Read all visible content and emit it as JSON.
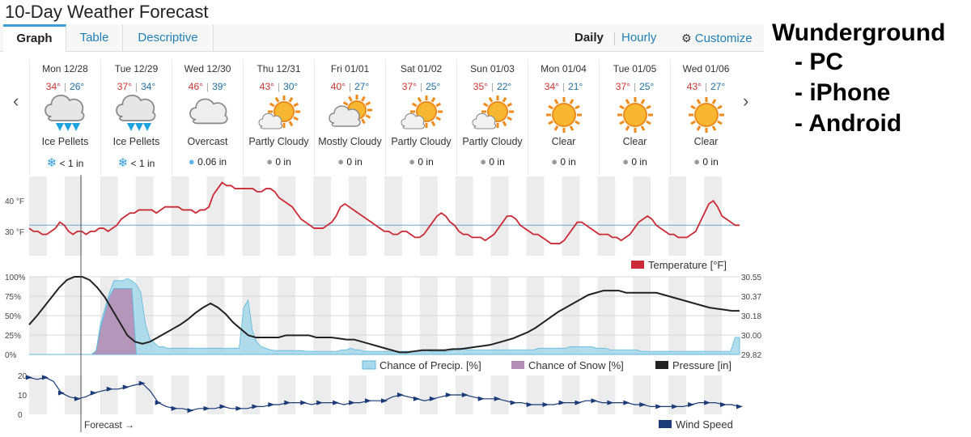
{
  "page": {
    "title": "10-Day Weather Forecast"
  },
  "tabs": [
    {
      "label": "Graph",
      "active": true
    },
    {
      "label": "Table",
      "active": false
    },
    {
      "label": "Descriptive",
      "active": false
    }
  ],
  "view": {
    "daily": "Daily",
    "hourly": "Hourly",
    "customize": "Customize"
  },
  "days": [
    {
      "date": "Mon 12/28",
      "hi": "34°",
      "lo": "26°",
      "cond": "Ice Pellets",
      "icon": "ice-pellets",
      "precip": "< 1 in",
      "precip_icon": "snowflake"
    },
    {
      "date": "Tue 12/29",
      "hi": "37°",
      "lo": "34°",
      "cond": "Ice Pellets",
      "icon": "ice-pellets",
      "precip": "< 1 in",
      "precip_icon": "snowflake"
    },
    {
      "date": "Wed 12/30",
      "hi": "46°",
      "lo": "39°",
      "cond": "Overcast",
      "icon": "overcast",
      "precip": "0.06 in",
      "precip_icon": "raindrop"
    },
    {
      "date": "Thu 12/31",
      "hi": "43°",
      "lo": "30°",
      "cond": "Partly Cloudy",
      "icon": "partly-cloudy",
      "precip": "0 in",
      "precip_icon": "raindrop"
    },
    {
      "date": "Fri 01/01",
      "hi": "40°",
      "lo": "27°",
      "cond": "Mostly Cloudy",
      "icon": "mostly-cloudy",
      "precip": "0 in",
      "precip_icon": "raindrop"
    },
    {
      "date": "Sat 01/02",
      "hi": "37°",
      "lo": "25°",
      "cond": "Partly Cloudy",
      "icon": "partly-cloudy",
      "precip": "0 in",
      "precip_icon": "raindrop"
    },
    {
      "date": "Sun 01/03",
      "hi": "35°",
      "lo": "22°",
      "cond": "Partly Cloudy",
      "icon": "partly-cloudy",
      "precip": "0 in",
      "precip_icon": "raindrop"
    },
    {
      "date": "Mon 01/04",
      "hi": "34°",
      "lo": "21°",
      "cond": "Clear",
      "icon": "clear",
      "precip": "0 in",
      "precip_icon": "raindrop"
    },
    {
      "date": "Tue 01/05",
      "hi": "37°",
      "lo": "25°",
      "cond": "Clear",
      "icon": "clear",
      "precip": "0 in",
      "precip_icon": "raindrop"
    },
    {
      "date": "Wed 01/06",
      "hi": "43°",
      "lo": "27°",
      "cond": "Clear",
      "icon": "clear",
      "precip": "0 in",
      "precip_icon": "raindrop"
    }
  ],
  "colors": {
    "temperature": "#cc2a36",
    "precip": "#a8d8ea",
    "snow": "#b48eb4",
    "pressure": "#222222",
    "wind": "#1b3a78",
    "accent": "#1f7fb6"
  },
  "temp_chart": {
    "ticks": [
      "40 °F",
      "30 °F"
    ],
    "legend": "Temperature [°F]",
    "values": [
      31,
      30,
      30,
      29,
      29,
      30,
      31,
      33,
      32,
      30,
      29,
      30,
      30,
      29,
      30,
      30,
      31,
      31,
      30,
      31,
      32,
      34,
      35,
      36,
      36,
      37,
      37,
      37,
      37,
      36,
      37,
      38,
      38,
      38,
      38,
      37,
      37,
      37,
      36,
      37,
      37,
      38,
      42,
      44,
      46,
      45,
      45,
      44,
      44,
      44,
      44,
      44,
      43,
      43,
      44,
      44,
      43,
      41,
      40,
      39,
      38,
      36,
      34,
      33,
      32,
      31,
      31,
      31,
      32,
      33,
      35,
      38,
      39,
      38,
      37,
      36,
      35,
      34,
      33,
      32,
      31,
      30,
      30,
      29,
      29,
      30,
      30,
      29,
      28,
      28,
      29,
      31,
      33,
      35,
      36,
      35,
      33,
      32,
      30,
      29,
      29,
      28,
      28,
      28,
      27,
      28,
      29,
      31,
      33,
      35,
      35,
      34,
      32,
      31,
      30,
      29,
      29,
      28,
      27,
      26,
      26,
      26,
      27,
      29,
      31,
      33,
      33,
      32,
      31,
      30,
      29,
      29,
      29,
      28,
      28,
      27,
      28,
      29,
      31,
      33,
      34,
      35,
      34,
      32,
      31,
      30,
      29,
      29,
      28,
      28,
      28,
      29,
      30,
      33,
      36,
      39,
      40,
      38,
      35,
      34,
      33,
      32,
      32
    ]
  },
  "precip_chart": {
    "left_ticks": [
      "100%",
      "75%",
      "50%",
      "25%",
      "0%"
    ],
    "right_ticks": [
      "30.55",
      "30.37",
      "30.18",
      "30.00",
      "29.82"
    ],
    "legend_precip": "Chance of Precip. [%]",
    "legend_snow": "Chance of Snow [%]",
    "legend_pressure": "Pressure [in]",
    "precip": [
      0,
      0,
      0,
      0,
      0,
      0,
      0,
      0,
      0,
      0,
      0,
      0,
      0,
      0,
      0,
      5,
      40,
      60,
      80,
      95,
      95,
      95,
      98,
      95,
      90,
      80,
      40,
      20,
      15,
      10,
      10,
      8,
      8,
      8,
      8,
      8,
      8,
      8,
      8,
      8,
      8,
      8,
      8,
      8,
      8,
      8,
      8,
      8,
      60,
      70,
      30,
      15,
      10,
      8,
      6,
      5,
      5,
      5,
      5,
      5,
      5,
      5,
      4,
      4,
      4,
      4,
      4,
      4,
      4,
      4,
      6,
      6,
      8,
      6,
      6,
      4,
      4,
      4,
      4,
      4,
      4,
      4,
      4,
      4,
      4,
      4,
      4,
      5,
      5,
      5,
      4,
      4,
      4,
      4,
      4,
      6,
      8,
      8,
      6,
      6,
      6,
      6,
      6,
      6,
      6,
      6,
      6,
      6,
      6,
      6,
      6,
      6,
      6,
      6,
      8,
      8,
      8,
      8,
      8,
      8,
      8,
      10,
      10,
      10,
      10,
      10,
      10,
      8,
      8,
      8,
      6,
      6,
      6,
      6,
      6,
      6,
      6,
      4,
      4,
      4,
      4,
      4,
      4,
      4,
      4,
      4,
      4,
      4,
      4,
      4,
      4,
      4,
      4,
      4,
      4,
      4,
      4,
      4,
      22,
      22
    ],
    "snow": [
      0,
      0,
      0,
      0,
      0,
      0,
      0,
      0,
      0,
      0,
      0,
      0,
      0,
      0,
      0,
      5,
      35,
      55,
      75,
      85,
      85,
      85,
      85,
      85,
      0,
      0,
      0,
      0,
      0,
      0,
      0,
      0,
      0,
      0,
      0,
      0,
      0,
      0,
      0,
      0,
      0,
      0,
      0,
      0,
      0,
      0,
      0,
      0,
      0,
      0,
      0,
      0,
      0,
      0,
      0,
      0,
      0,
      0,
      0,
      0,
      0,
      0,
      0,
      0,
      0,
      0,
      0,
      0,
      0,
      0,
      0,
      0,
      0,
      0,
      0,
      0,
      0,
      0,
      0,
      0,
      0,
      0,
      0,
      0,
      0,
      0,
      0,
      0,
      0,
      0,
      0,
      0,
      0,
      0,
      0,
      0,
      0,
      0,
      0,
      0,
      0,
      0,
      0,
      0,
      0,
      0,
      0,
      0,
      0,
      0,
      0,
      0,
      0,
      0,
      0,
      0,
      0,
      0,
      0,
      0,
      0,
      0,
      0,
      0,
      0,
      0,
      0,
      0,
      0,
      0,
      0,
      0,
      0,
      0,
      0,
      0,
      0,
      0,
      0,
      0,
      0,
      0,
      0,
      0,
      0,
      0,
      0,
      0,
      0,
      0,
      0,
      0,
      0,
      0,
      0,
      0,
      0,
      0,
      0,
      0
    ],
    "pressure": [
      30.1,
      30.18,
      30.27,
      30.36,
      30.45,
      30.52,
      30.55,
      30.55,
      30.52,
      30.45,
      30.36,
      30.24,
      30.12,
      30.0,
      29.94,
      29.92,
      29.94,
      29.98,
      30.02,
      30.06,
      30.1,
      30.15,
      30.21,
      30.26,
      30.3,
      30.26,
      30.2,
      30.12,
      30.06,
      30.0,
      29.98,
      29.98,
      29.98,
      29.98,
      30.0,
      30.0,
      30.0,
      30.0,
      29.98,
      29.98,
      29.98,
      29.97,
      29.96,
      29.96,
      29.94,
      29.92,
      29.9,
      29.88,
      29.86,
      29.84,
      29.84,
      29.85,
      29.86,
      29.86,
      29.86,
      29.86,
      29.87,
      29.87,
      29.88,
      29.89,
      29.9,
      29.91,
      29.93,
      29.95,
      29.97,
      30.0,
      30.03,
      30.07,
      30.12,
      30.17,
      30.22,
      30.26,
      30.3,
      30.34,
      30.38,
      30.4,
      30.42,
      30.42,
      30.42,
      30.4,
      30.4,
      30.4,
      30.4,
      30.4,
      30.38,
      30.36,
      30.34,
      30.32,
      30.3,
      30.28,
      30.26,
      30.25,
      30.24,
      30.23,
      30.23
    ]
  },
  "wind_chart": {
    "ticks": [
      "20",
      "10",
      "0"
    ],
    "legend": "Wind Speed",
    "values": [
      19,
      18,
      19,
      17,
      11,
      9,
      8,
      9,
      11,
      12,
      13,
      13,
      14,
      15,
      16,
      12,
      6,
      4,
      3,
      3,
      2,
      3,
      3,
      3,
      4,
      3,
      3,
      3,
      4,
      4,
      5,
      5,
      6,
      6,
      6,
      5,
      6,
      6,
      6,
      5,
      6,
      6,
      7,
      7,
      7,
      9,
      10,
      9,
      8,
      7,
      8,
      9,
      10,
      10,
      10,
      9,
      8,
      8,
      8,
      7,
      6,
      6,
      5,
      5,
      5,
      5,
      6,
      6,
      6,
      7,
      7,
      6,
      6,
      6,
      6,
      5,
      5,
      4,
      4,
      4,
      4,
      4,
      5,
      6,
      6,
      6,
      5,
      5,
      4
    ],
    "forecast_label": "Forecast →"
  },
  "side": {
    "heading": "Wunderground",
    "items": [
      "- PC",
      "- iPhone",
      "- Android"
    ]
  }
}
